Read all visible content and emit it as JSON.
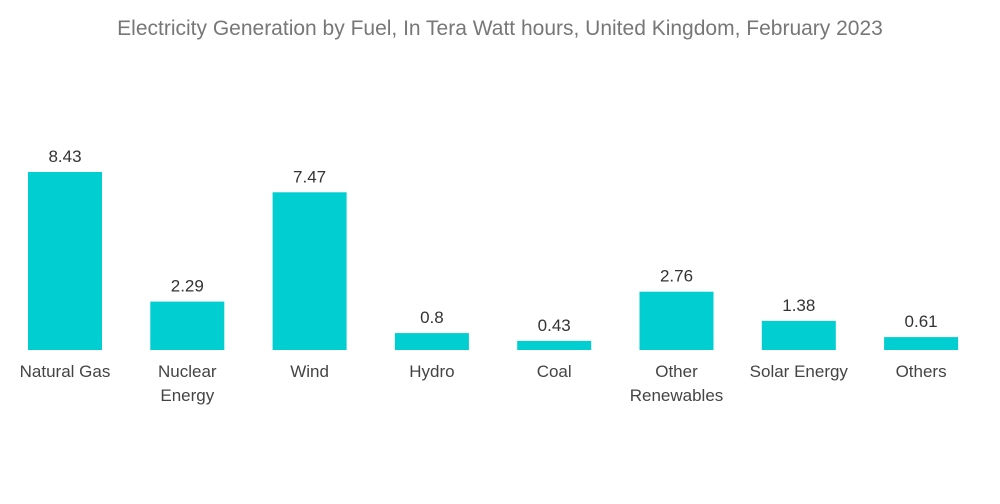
{
  "chart_data": {
    "type": "bar",
    "title": "Electricity Generation by Fuel, In Tera Watt hours, United Kingdom, February 2023",
    "categories": [
      [
        "Natural Gas"
      ],
      [
        "Nuclear",
        "Energy"
      ],
      [
        "Wind"
      ],
      [
        "Hydro"
      ],
      [
        "Coal"
      ],
      [
        "Other",
        "Renewables"
      ],
      [
        "Solar Energy"
      ],
      [
        "Others"
      ]
    ],
    "values": [
      8.43,
      2.29,
      7.47,
      0.8,
      0.43,
      2.76,
      1.38,
      0.61
    ],
    "value_labels": [
      "8.43",
      "2.29",
      "7.47",
      "0.8",
      "0.43",
      "2.76",
      "1.38",
      "0.61"
    ],
    "xlabel": "",
    "ylabel": "",
    "ylim": [
      0,
      8.43
    ],
    "grid": false,
    "bar_color": "#00ced1"
  }
}
